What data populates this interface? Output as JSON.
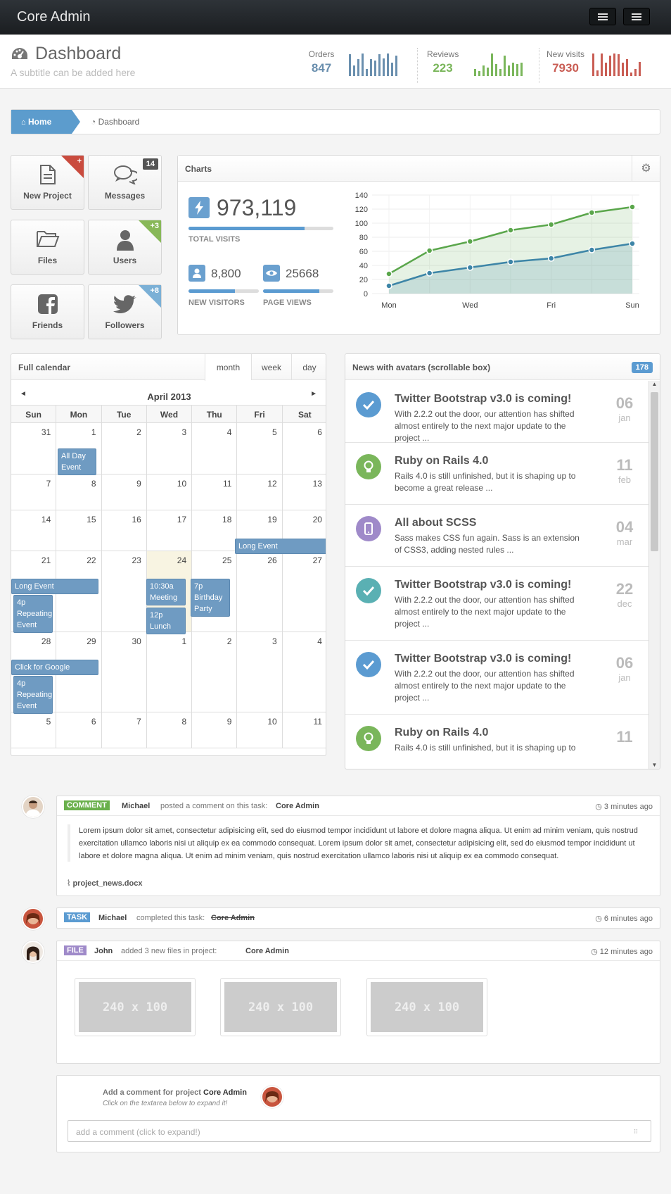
{
  "app": {
    "brand": "Core Admin"
  },
  "header": {
    "title": "Dashboard",
    "subtitle": "A subtitle can be added here"
  },
  "stats": [
    {
      "label": "Orders",
      "value": "847",
      "color": "#6a8fae",
      "bars": [
        0.9,
        0.45,
        0.7,
        0.95,
        0.3,
        0.7,
        0.65,
        0.9,
        0.75,
        0.95,
        0.55,
        0.85
      ]
    },
    {
      "label": "Reviews",
      "value": "223",
      "color": "#7ab65b",
      "bars": [
        0.3,
        0.2,
        0.45,
        0.35,
        0.95,
        0.5,
        0.3,
        0.85,
        0.45,
        0.55,
        0.5,
        0.55
      ]
    },
    {
      "label": "New visits",
      "value": "7930",
      "color": "#c95d54",
      "bars": [
        0.95,
        0.25,
        0.95,
        0.55,
        0.85,
        0.95,
        0.9,
        0.55,
        0.7,
        0.15,
        0.3,
        0.6
      ]
    }
  ],
  "breadcrumb": {
    "home": "Home",
    "current": "Dashboard"
  },
  "tiles": [
    {
      "label": "New Project",
      "badge": "+"
    },
    {
      "label": "Messages",
      "badge": "14"
    },
    {
      "label": "Files",
      "badge": ""
    },
    {
      "label": "Users",
      "badge": "+3"
    },
    {
      "label": "Friends",
      "badge": ""
    },
    {
      "label": "Followers",
      "badge": "+8"
    }
  ],
  "charts_panel": {
    "title": "Charts",
    "total_visits": "973,119",
    "total_visits_label": "TOTAL VISITS",
    "total_visits_progress": 0.8,
    "new_visitors": "8,800",
    "new_visitors_label": "NEW VISITORS",
    "new_visitors_progress": 0.66,
    "page_views": "25668",
    "page_views_label": "PAGE VIEWS",
    "page_views_progress": 0.8
  },
  "chart_data": {
    "type": "area",
    "x": [
      "Mon",
      "",
      "Wed",
      "",
      "Fri",
      "",
      "Sun"
    ],
    "ylim": [
      0,
      140
    ],
    "yticks": [
      0,
      20,
      40,
      60,
      80,
      100,
      120,
      140
    ],
    "series": [
      {
        "color": "#5aa64b",
        "values": [
          28,
          61,
          74,
          90,
          98,
          115,
          123
        ]
      },
      {
        "color": "#3d85a7",
        "values": [
          11,
          29,
          37,
          45,
          50,
          62,
          71
        ]
      }
    ],
    "grid": true
  },
  "calendar": {
    "title": "Full calendar",
    "views": [
      "month",
      "week",
      "day"
    ],
    "month": "April 2013",
    "prev": "◄",
    "next": "►",
    "weekdays": [
      "Sun",
      "Mon",
      "Tue",
      "Wed",
      "Thu",
      "Fri",
      "Sat"
    ],
    "weeks": [
      [
        "31",
        "1",
        "2",
        "3",
        "4",
        "5",
        "6"
      ],
      [
        "7",
        "8",
        "9",
        "10",
        "11",
        "12",
        "13"
      ],
      [
        "14",
        "15",
        "16",
        "17",
        "18",
        "19",
        "20"
      ],
      [
        "21",
        "22",
        "23",
        "24",
        "25",
        "26",
        "27"
      ],
      [
        "28",
        "29",
        "30",
        "1",
        "2",
        "3",
        "4"
      ],
      [
        "5",
        "6",
        "7",
        "8",
        "9",
        "10",
        "11"
      ]
    ],
    "events": {
      "all_day": "All Day Event",
      "long1": "Long Event",
      "long2": "Long Event",
      "rep1": "4p Repeating Event",
      "meeting": "10:30a Meeting",
      "lunch": "12p Lunch",
      "birthday": "7p Birthday Party",
      "google": "Click for Google",
      "rep2": "4p Repeating Event"
    }
  },
  "news": {
    "title": "News with avatars (scrollable box)",
    "badge": "178",
    "items": [
      {
        "title": "Twitter Bootstrap v3.0 is coming!",
        "text": "With 2.2.2 out the door, our attention has shifted almost entirely to the next major update to the project ...",
        "day": "06",
        "month": "jan",
        "icon": "check-icon",
        "color": "#5b9bd1"
      },
      {
        "title": "Ruby on Rails 4.0",
        "text": "Rails 4.0 is still unfinished, but it is shaping up to become a great release ...",
        "day": "11",
        "month": "feb",
        "icon": "lightbulb-icon",
        "color": "#7ab65b"
      },
      {
        "title": "All about SCSS",
        "text": "Sass makes CSS fun again. Sass is an extension of CSS3, adding nested rules ...",
        "day": "04",
        "month": "mar",
        "icon": "mobile-icon",
        "color": "#9f8ac9"
      },
      {
        "title": "Twitter Bootstrap v3.0 is coming!",
        "text": "With 2.2.2 out the door, our attention has shifted almost entirely to the next major update to the project ...",
        "day": "22",
        "month": "dec",
        "icon": "check-icon",
        "color": "#5ab0b3"
      },
      {
        "title": "Twitter Bootstrap v3.0 is coming!",
        "text": "With 2.2.2 out the door, our attention has shifted almost entirely to the next major update to the project ...",
        "day": "06",
        "month": "jan",
        "icon": "check-icon",
        "color": "#5b9bd1"
      },
      {
        "title": "Ruby on Rails 4.0",
        "text": "Rails 4.0 is still unfinished, but it is shaping up to",
        "day": "11",
        "month": "",
        "icon": "lightbulb-icon",
        "color": "#7ab65b"
      }
    ]
  },
  "timeline": {
    "comment": {
      "label": "COMMENT",
      "user": "Michael",
      "action": "posted a comment on this task:",
      "target": "Core Admin",
      "time": "3 minutes ago",
      "body": "Lorem ipsum dolor sit amet, consectetur adipisicing elit, sed do eiusmod tempor incididunt ut labore et dolore magna aliqua. Ut enim ad minim veniam, quis nostrud exercitation ullamco laboris nisi ut aliquip ex ea commodo consequat. Lorem ipsum dolor sit amet, consectetur adipisicing elit, sed do eiusmod tempor incididunt ut labore et dolore magna aliqua. Ut enim ad minim veniam, quis nostrud exercitation ullamco laboris nisi ut aliquip ex ea commodo consequat.",
      "attachment": "project_news.docx"
    },
    "task": {
      "label": "TASK",
      "user": "Michael",
      "action": "completed this task:",
      "target": "Core Admin",
      "time": "6 minutes ago"
    },
    "file": {
      "label": "FILE",
      "user": "John",
      "action": "added 3 new files in project:",
      "target": "Core Admin",
      "time": "12 minutes ago",
      "images": [
        "240 x 100",
        "240 x 100",
        "240 x 100"
      ]
    },
    "add_comment": {
      "title": "Add a comment for project",
      "target": "Core Admin",
      "hint": "Click on the textarea below to expand it!",
      "placeholder": "add a comment (click to expand!)"
    }
  },
  "colors": {
    "comment": "#6ab04c",
    "task": "#5b9bd1",
    "file": "#9f8ac9"
  }
}
